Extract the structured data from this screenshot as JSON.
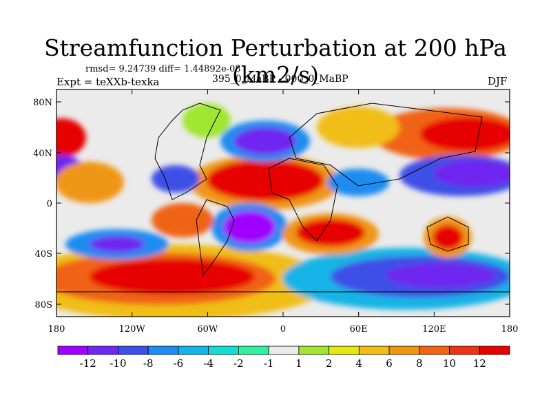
{
  "title": "Streamfunction Perturbation at 200 hPa (km2/s)",
  "stats": "rmsd= 9.24739 diff= 1.44892e-08",
  "left_label": "Expt = teXXb-texka",
  "center_label": "395_0_MaBP - 000_0_MaBP",
  "right_label": "DJF",
  "map": {
    "lon_ticks": [
      "180",
      "120W",
      "60W",
      "0",
      "60E",
      "120E",
      "180"
    ],
    "lat_ticks": [
      "80N",
      "40N",
      "0",
      "40S",
      "80S"
    ]
  },
  "colorbar": {
    "labels": [
      "-12",
      "-10",
      "-8",
      "-6",
      "-4",
      "-2",
      "-1",
      "1",
      "2",
      "4",
      "6",
      "8",
      "10",
      "12"
    ],
    "colors": [
      "#a000ff",
      "#6e28f0",
      "#3c50e6",
      "#1e8cf0",
      "#14b4e6",
      "#14dcd2",
      "#32f0a0",
      "#ebebeb",
      "#a0e632",
      "#e6e614",
      "#f0be14",
      "#f09614",
      "#f06414",
      "#f03214",
      "#e60000"
    ]
  }
}
